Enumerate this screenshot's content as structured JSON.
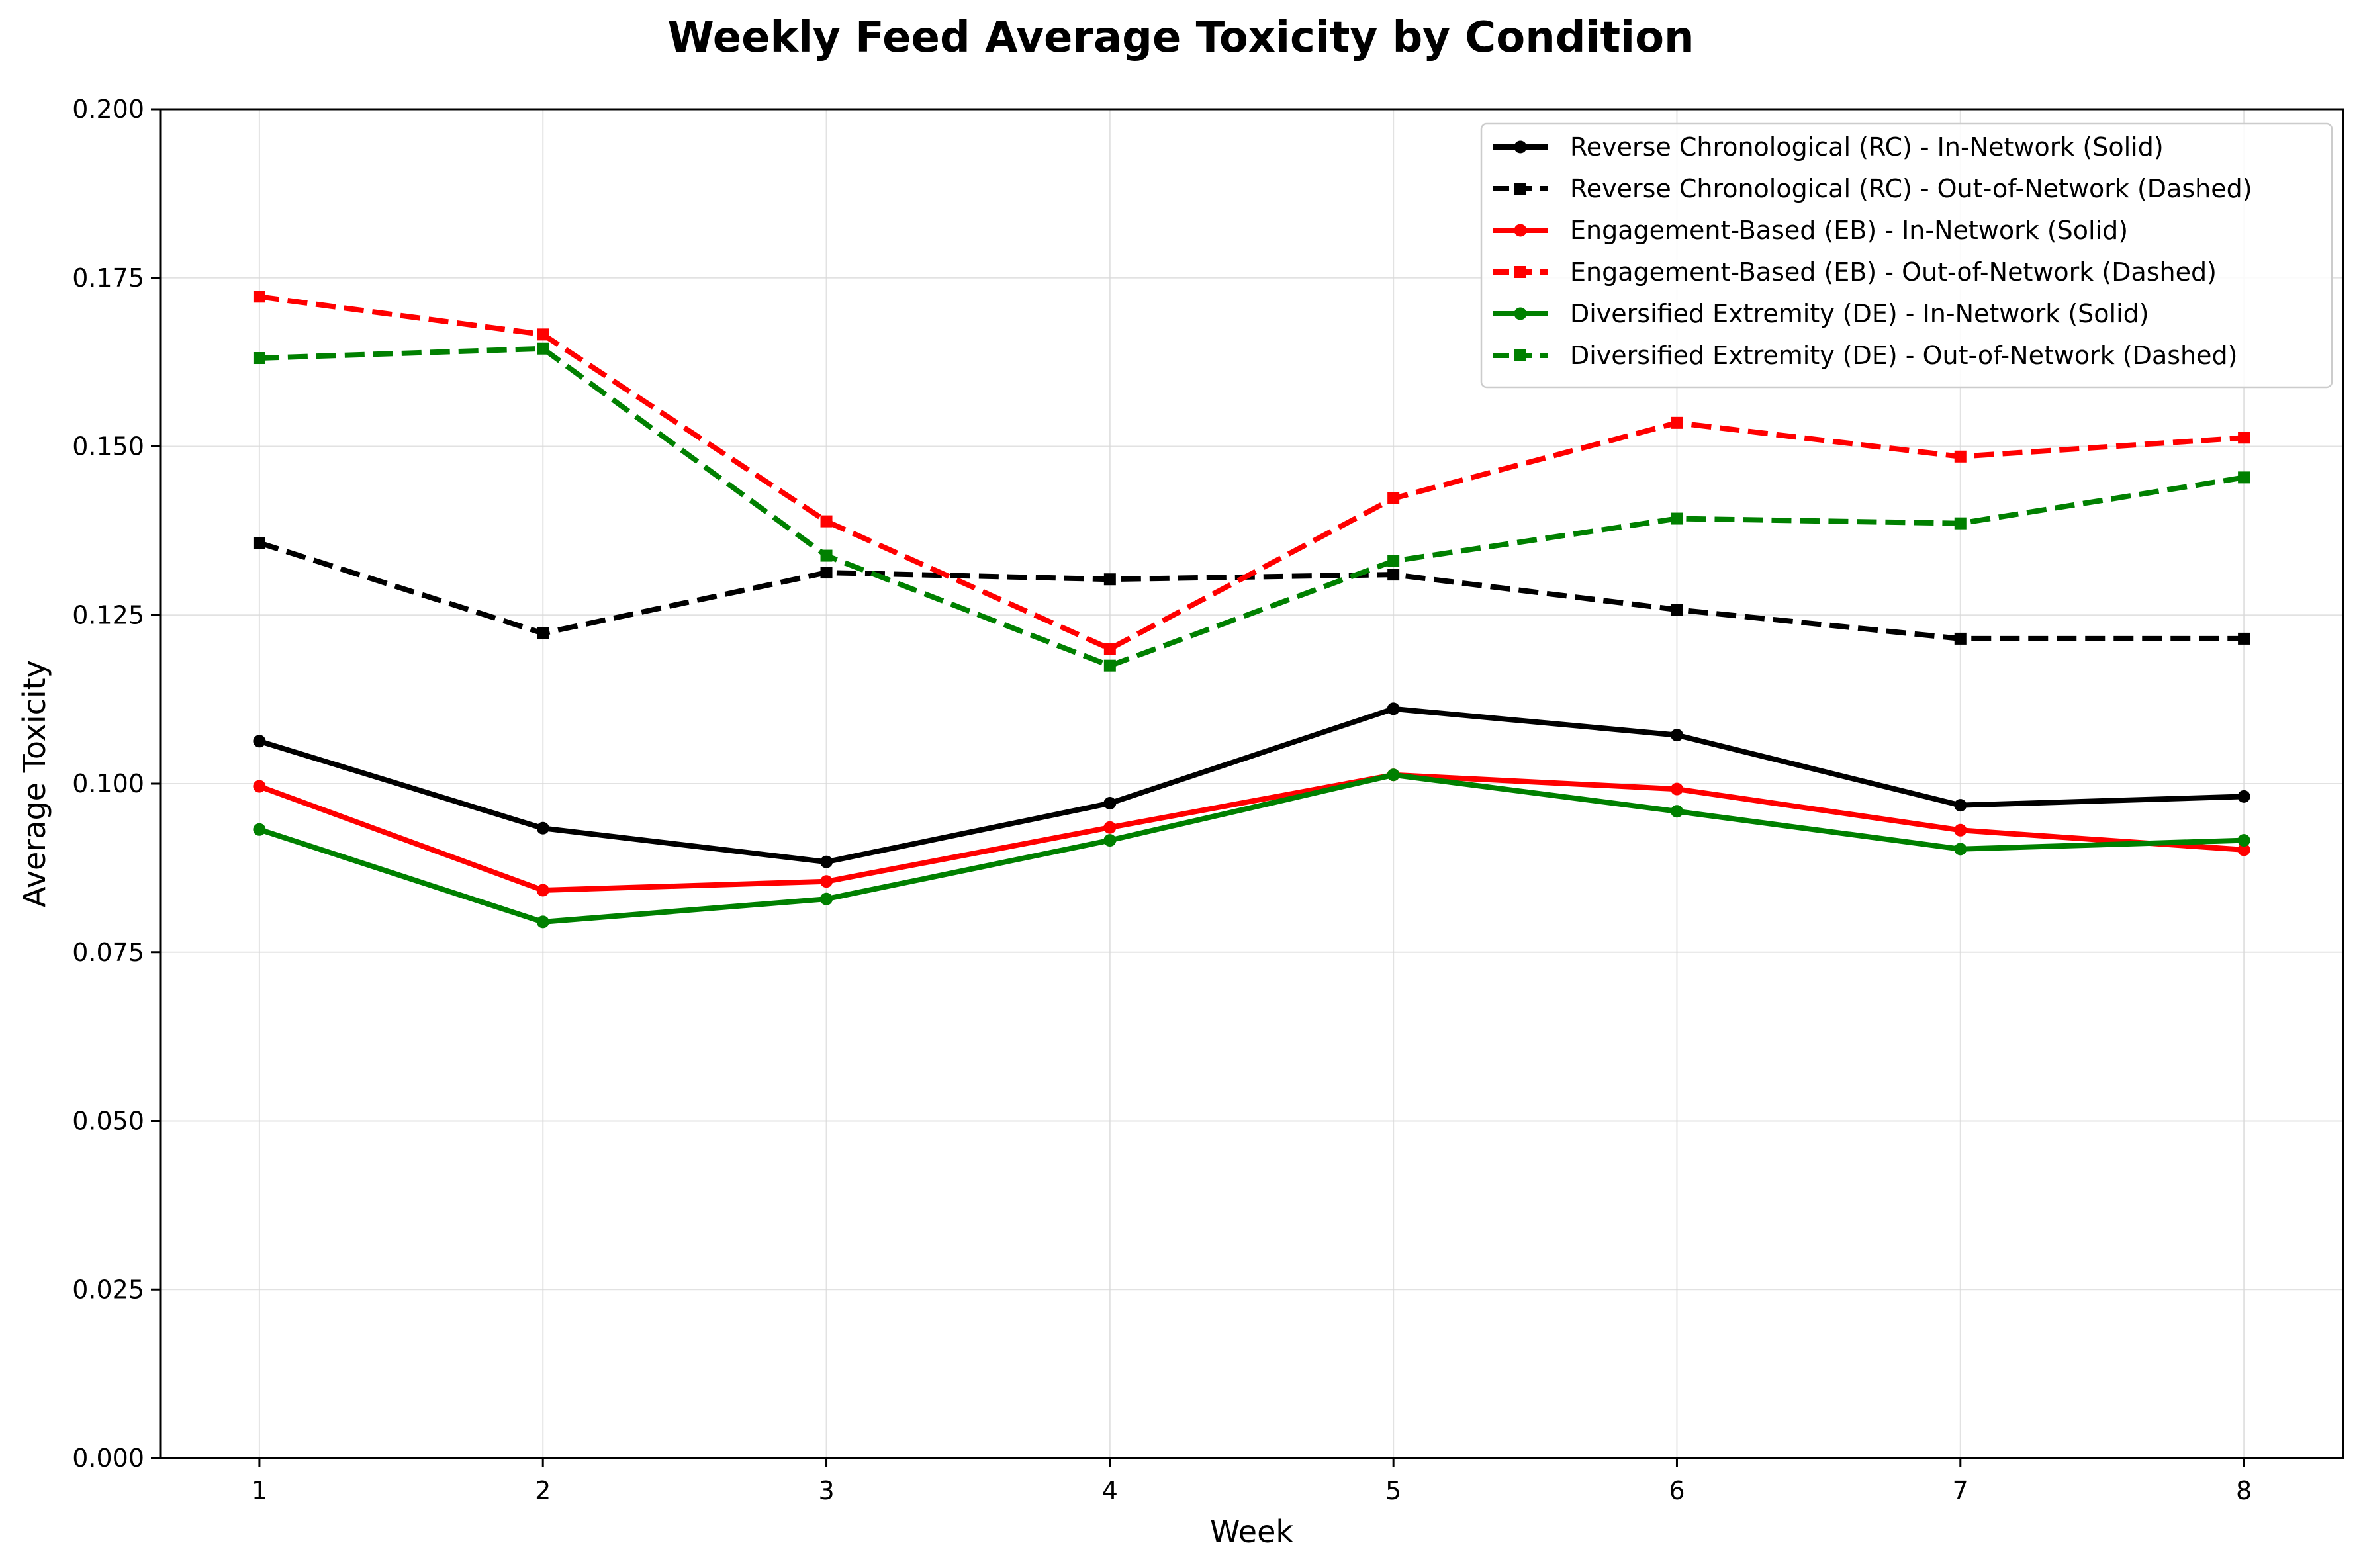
{
  "chart_data": {
    "type": "line",
    "title": "Weekly Feed Average Toxicity by Condition",
    "xlabel": "Week",
    "ylabel": "Average Toxicity",
    "x": [
      1,
      2,
      3,
      4,
      5,
      6,
      7,
      8
    ],
    "xlim": [
      0.65,
      8.35
    ],
    "ylim": [
      0,
      0.2
    ],
    "xticks": [
      "1",
      "2",
      "3",
      "4",
      "5",
      "6",
      "7",
      "8"
    ],
    "yticks": [
      "0.000",
      "0.025",
      "0.050",
      "0.075",
      "0.100",
      "0.125",
      "0.150",
      "0.175",
      "0.200"
    ],
    "grid": true,
    "legend_position": "top-right",
    "series": [
      {
        "name": "Reverse Chronological (RC) - In-Network (Solid)",
        "color": "#000000",
        "dash": "solid",
        "marker": "circle",
        "values": [
          0.1063,
          0.0934,
          0.0884,
          0.0971,
          0.1111,
          0.1072,
          0.0968,
          0.0981
        ]
      },
      {
        "name": "Reverse Chronological (RC) - Out-of-Network (Dashed)",
        "color": "#000000",
        "dash": "dashed",
        "marker": "square",
        "values": [
          0.1357,
          0.1223,
          0.1313,
          0.1303,
          0.131,
          0.1258,
          0.1215,
          0.1215
        ]
      },
      {
        "name": "Engagement-Based (EB) - In-Network (Solid)",
        "color": "#ff0000",
        "dash": "solid",
        "marker": "circle",
        "values": [
          0.0996,
          0.0842,
          0.0855,
          0.0935,
          0.1013,
          0.0992,
          0.0931,
          0.0902
        ]
      },
      {
        "name": "Engagement-Based (EB) - Out-of-Network (Dashed)",
        "color": "#ff0000",
        "dash": "dashed",
        "marker": "square",
        "values": [
          0.1722,
          0.1666,
          0.1389,
          0.12,
          0.1423,
          0.1535,
          0.1485,
          0.1513
        ]
      },
      {
        "name": "Diversified Extremity (DE) - In-Network (Solid)",
        "color": "#008000",
        "dash": "solid",
        "marker": "circle",
        "values": [
          0.0932,
          0.0795,
          0.0829,
          0.0916,
          0.1013,
          0.0959,
          0.0903,
          0.0916
        ]
      },
      {
        "name": "Diversified Extremity (DE) - Out-of-Network (Dashed)",
        "color": "#008000",
        "dash": "dashed",
        "marker": "square",
        "values": [
          0.1631,
          0.1645,
          0.1338,
          0.1175,
          0.133,
          0.1393,
          0.1386,
          0.1454
        ]
      }
    ]
  }
}
